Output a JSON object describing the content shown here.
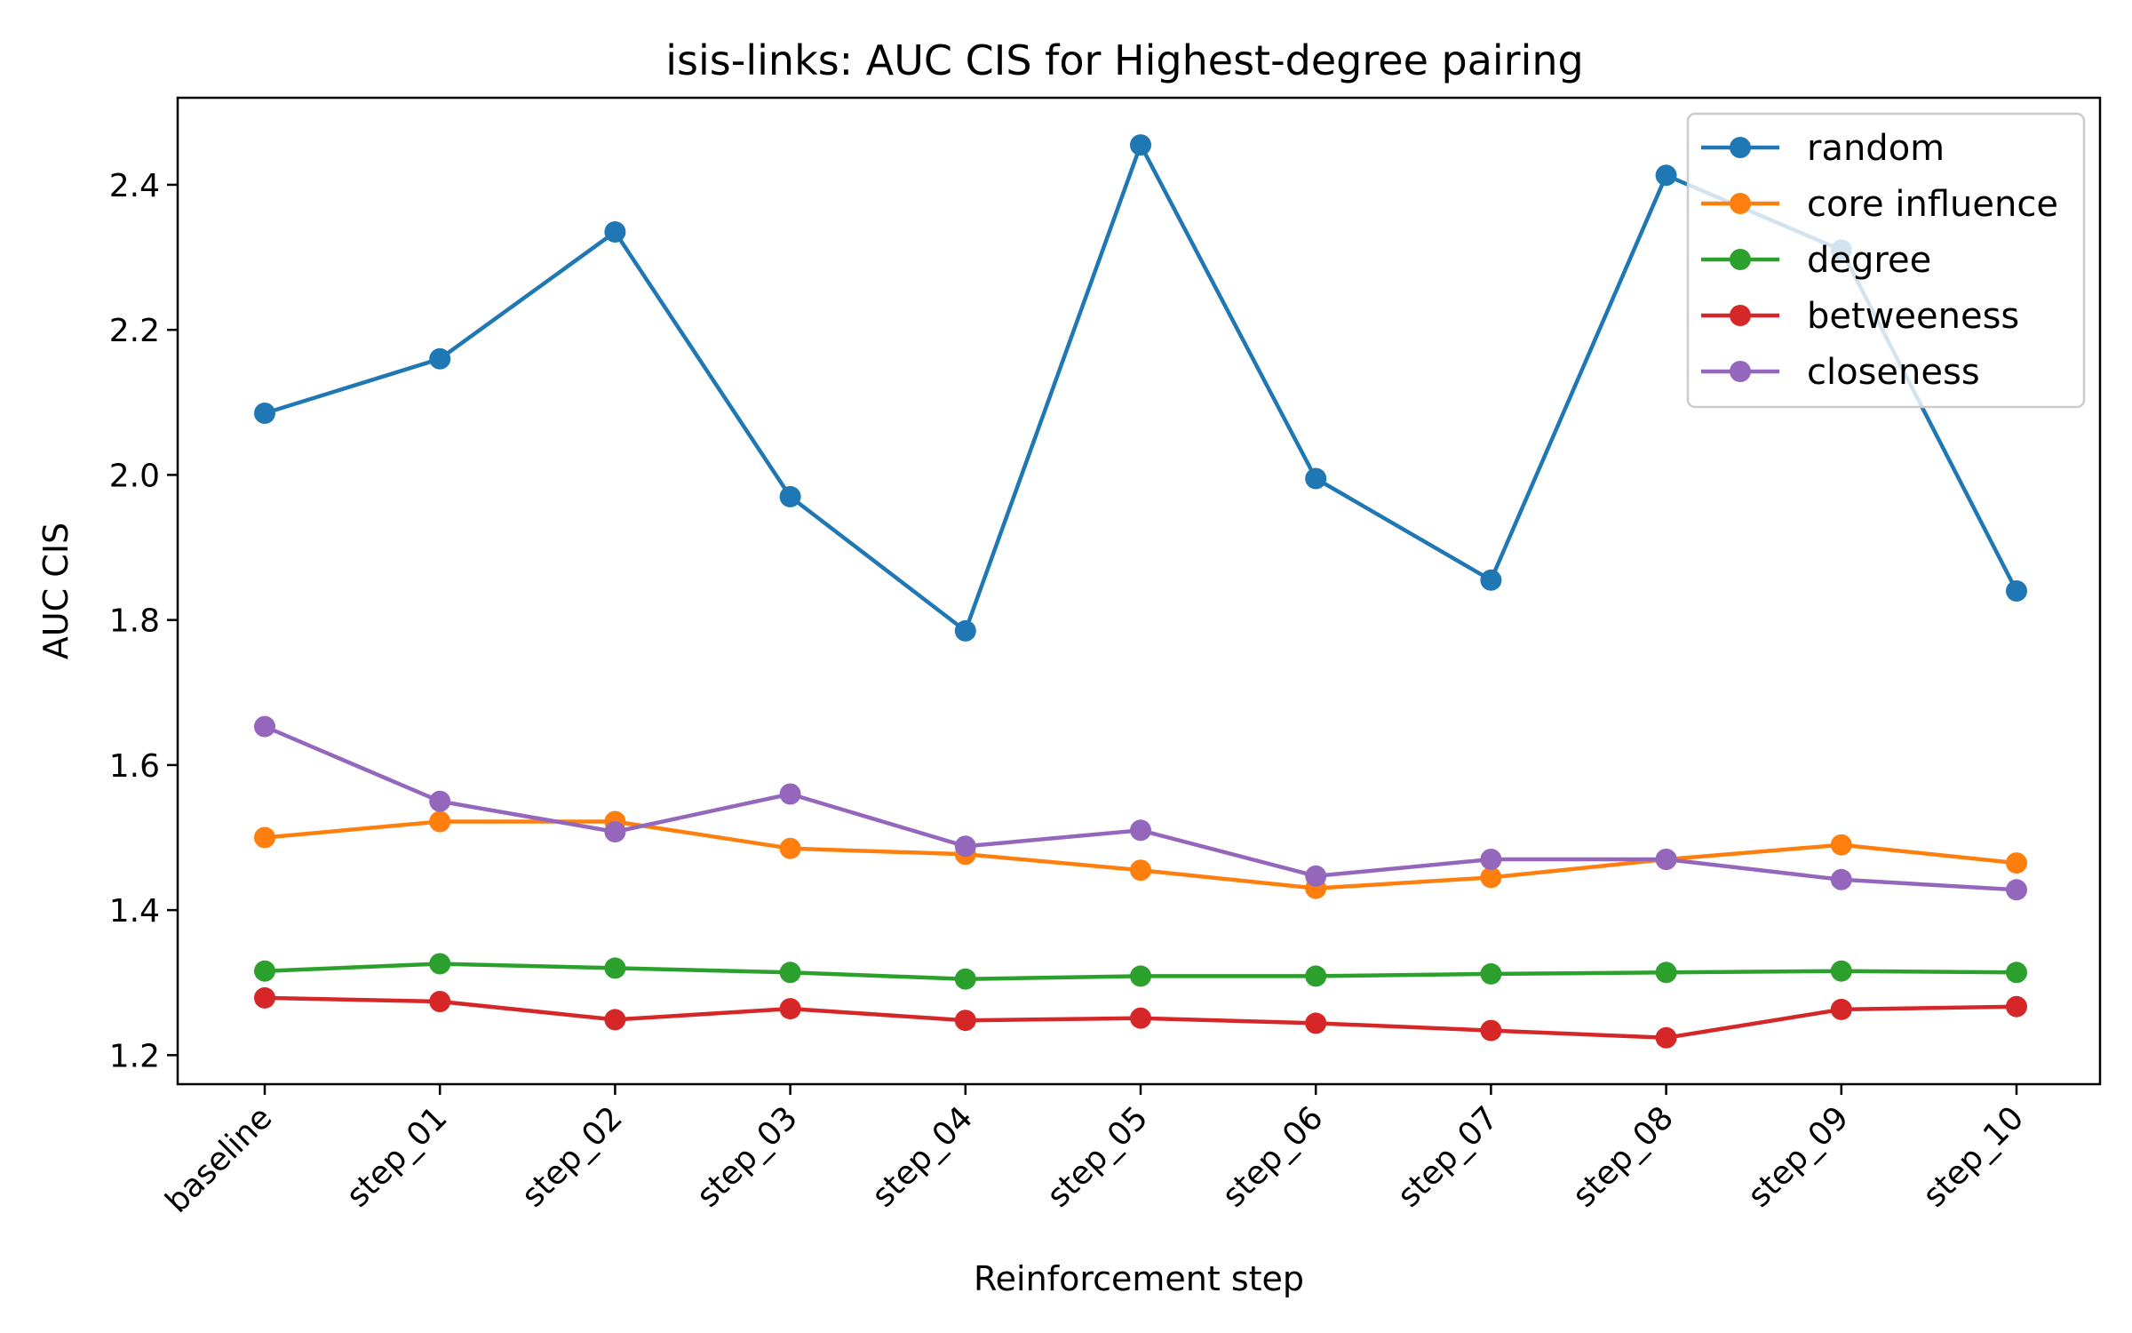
{
  "chart_data": {
    "type": "line",
    "title": "isis-links: AUC CIS for Highest-degree pairing",
    "xlabel": "Reinforcement step",
    "ylabel": "AUC CIS",
    "categories": [
      "baseline",
      "step_01",
      "step_02",
      "step_03",
      "step_04",
      "step_05",
      "step_06",
      "step_07",
      "step_08",
      "step_09",
      "step_10"
    ],
    "yticks": [
      "1.2",
      "1.4",
      "1.6",
      "1.8",
      "2.0",
      "2.2",
      "2.4"
    ],
    "ylim": [
      1.16,
      2.52
    ],
    "grid": false,
    "legend_position": "top-right",
    "series": [
      {
        "name": "random",
        "color": "#1f77b4",
        "values": [
          2.085,
          2.16,
          2.335,
          1.97,
          1.785,
          2.455,
          1.995,
          1.855,
          2.413,
          2.31,
          1.84
        ]
      },
      {
        "name": "core influence",
        "color": "#ff7f0e",
        "values": [
          1.5,
          1.522,
          1.522,
          1.485,
          1.477,
          1.455,
          1.43,
          1.445,
          1.47,
          1.49,
          1.465
        ]
      },
      {
        "name": "degree",
        "color": "#2ca02c",
        "values": [
          1.316,
          1.326,
          1.32,
          1.314,
          1.305,
          1.309,
          1.309,
          1.312,
          1.314,
          1.316,
          1.314
        ]
      },
      {
        "name": "betweeness",
        "color": "#d62728",
        "values": [
          1.279,
          1.274,
          1.249,
          1.264,
          1.248,
          1.251,
          1.244,
          1.234,
          1.224,
          1.263,
          1.267
        ]
      },
      {
        "name": "closeness",
        "color": "#9467bd",
        "values": [
          1.653,
          1.55,
          1.508,
          1.56,
          1.488,
          1.51,
          1.447,
          1.47,
          1.47,
          1.442,
          1.428
        ]
      }
    ]
  }
}
